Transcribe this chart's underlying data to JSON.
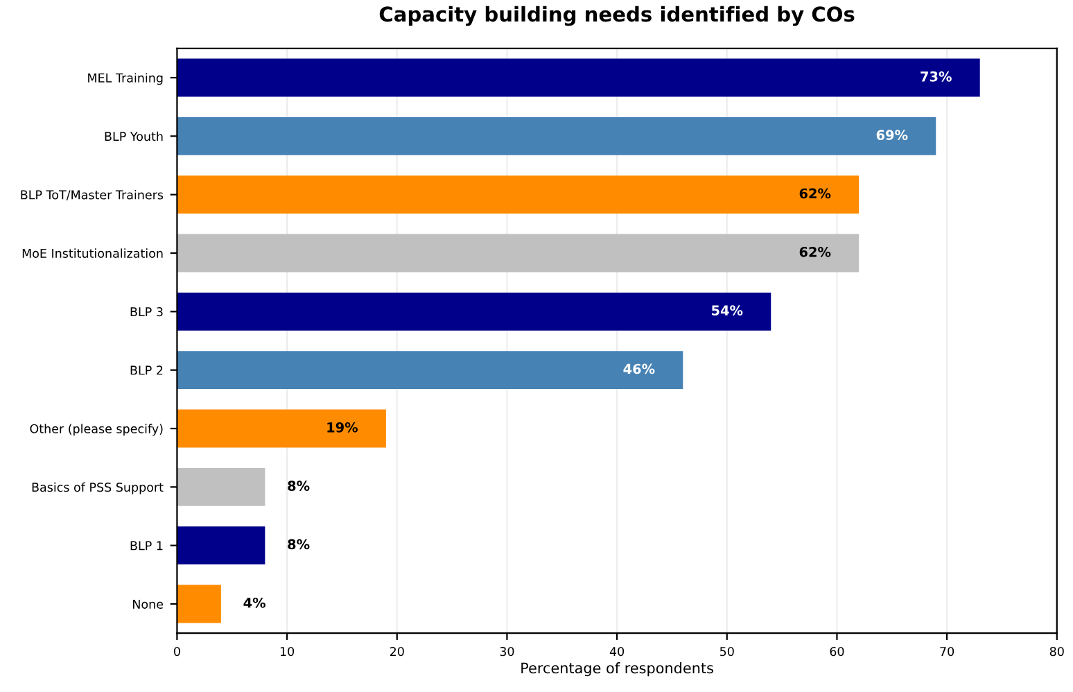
{
  "chart_data": {
    "type": "bar",
    "orientation": "horizontal",
    "title": "Capacity building needs identified by COs",
    "xlabel": "Percentage of respondents",
    "categories": [
      "MEL Training",
      "BLP Youth",
      "BLP ToT/Master Trainers",
      "MoE Institutionalization",
      "BLP 3",
      "BLP 2",
      "Other (please specify)",
      "Basics of PSS Support",
      "BLP 1",
      "None"
    ],
    "values": [
      73,
      69,
      62,
      62,
      54,
      46,
      19,
      8,
      8,
      4
    ],
    "colors": [
      "#00008b",
      "#4682b4",
      "#ff8c00",
      "#c0c0c0",
      "#00008b",
      "#4682b4",
      "#ff8c00",
      "#c0c0c0",
      "#00008b",
      "#ff8c00"
    ],
    "value_labels": [
      "73%",
      "69%",
      "62%",
      "62%",
      "54%",
      "46%",
      "19%",
      "8%",
      "8%",
      "4%"
    ],
    "xlim": [
      0,
      80
    ],
    "xticks": [
      0,
      10,
      20,
      30,
      40,
      50,
      60,
      70,
      80
    ],
    "grid": "x",
    "legend": false
  }
}
